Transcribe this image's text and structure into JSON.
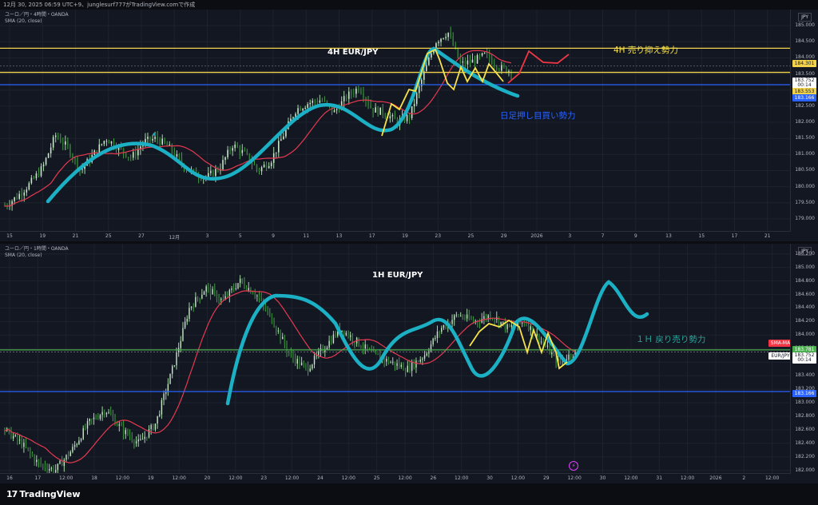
{
  "header": {
    "text": "12月 30, 2025 06:59 UTC+9、junglesurf777がTradingView.comで作成"
  },
  "colors": {
    "candle_up": "#26a69a",
    "candle_down": "#ef5350",
    "sma": "#e53950",
    "wave": "#1bb0c4",
    "zigzag": "#f6e24a",
    "forecast": "#f23645",
    "resistance": "#f2d24a",
    "support": "#2962ff",
    "hline_green": "#4caf50",
    "gray_line": "#787b86"
  },
  "chart_data": [
    {
      "type": "candlestick",
      "timeframe": "4H",
      "title": "4H EUR/JPY",
      "symbol_line": "ユーロ／円・4時間・OANDA",
      "indicator_line": "SMA (20, close)",
      "currency": "JPY",
      "ylim": [
        178.6,
        185.5
      ],
      "yticks": [
        "185.000",
        "184.500",
        "184.000",
        "183.500",
        "183.000",
        "182.500",
        "182.000",
        "181.500",
        "181.000",
        "180.500",
        "180.000",
        "179.500",
        "179.000"
      ],
      "xticks": [
        "15",
        "19",
        "21",
        "25",
        "27",
        "12月",
        "3",
        "5",
        "9",
        "11",
        "13",
        "17",
        "19",
        "23",
        "25",
        "29",
        "2026",
        "3",
        "7",
        "9",
        "13",
        "15",
        "17",
        "21"
      ],
      "series_close_path": [
        179.4,
        179.7,
        180.1,
        180.6,
        181.6,
        181.2,
        180.5,
        181.0,
        181.5,
        181.2,
        180.9,
        181.4,
        181.5,
        181.2,
        180.7,
        180.4,
        180.3,
        180.6,
        181.3,
        181.0,
        180.5,
        180.8,
        181.6,
        182.4,
        182.6,
        182.7,
        182.3,
        182.8,
        183.1,
        182.4,
        182.3,
        182.0,
        182.2,
        183.4,
        184.5,
        184.8,
        183.8,
        183.9,
        184.1,
        183.7,
        183.6
      ],
      "hlines": [
        {
          "label": "184.301",
          "value": 184.3,
          "color": "resistance"
        },
        {
          "label": "183.553",
          "value": 183.55,
          "color": "resistance"
        },
        {
          "label": "183.166",
          "value": 183.166,
          "color": "support"
        }
      ],
      "last_price": "183.752",
      "countdown": "00:14",
      "annotations": [
        {
          "text": "4H  売り抑え勢力",
          "color": "#f6e24a"
        },
        {
          "text": "日足押し目買い勢力",
          "color": "#2962ff"
        }
      ]
    },
    {
      "type": "candlestick",
      "timeframe": "1H",
      "title": "1H EUR/JPY",
      "symbol_line": "ユーロ／円・1時間・OANDA",
      "indicator_line": "SMA (20, close)",
      "currency": "JPY",
      "ylim": [
        181.95,
        185.35
      ],
      "yticks": [
        "185.200",
        "185.000",
        "184.800",
        "184.600",
        "184.400",
        "184.200",
        "184.000",
        "183.800",
        "183.600",
        "183.400",
        "183.200",
        "183.000",
        "182.800",
        "182.600",
        "182.400",
        "182.200",
        "182.000"
      ],
      "xticks": [
        "16",
        "17",
        "12:00",
        "18",
        "12:00",
        "19",
        "12:00",
        "20",
        "12:00",
        "23",
        "12:00",
        "24",
        "12:00",
        "25",
        "12:00",
        "26",
        "12:00",
        "30",
        "12:00",
        "29",
        "12:00",
        "30",
        "12:00",
        "31",
        "12:00",
        "2026",
        "2",
        "12:00"
      ],
      "series_close_path": [
        182.6,
        182.4,
        182.1,
        182.0,
        182.3,
        182.7,
        182.9,
        182.6,
        182.4,
        182.7,
        183.5,
        184.4,
        184.7,
        184.5,
        184.8,
        184.6,
        184.2,
        183.7,
        183.5,
        183.8,
        184.1,
        183.9,
        183.7,
        183.6,
        183.5,
        183.7,
        184.1,
        184.3,
        184.2,
        184.3,
        184.1,
        184.2,
        183.9,
        183.6,
        183.75
      ],
      "hlines": [
        {
          "label": "183.781",
          "value": 183.781,
          "color": "hline_green"
        },
        {
          "label": "183.166",
          "value": 183.166,
          "color": "support"
        }
      ],
      "last_price": "183.752",
      "countdown": "00:14",
      "sma_tag": "SMA-MA",
      "symbol_tag": "EUR/JPY",
      "annotations": [
        {
          "text": "１Ｈ 戻り売り勢力",
          "color": "#26a69a"
        }
      ]
    }
  ],
  "footer": {
    "brand": "TradingView",
    "logo": "17"
  }
}
